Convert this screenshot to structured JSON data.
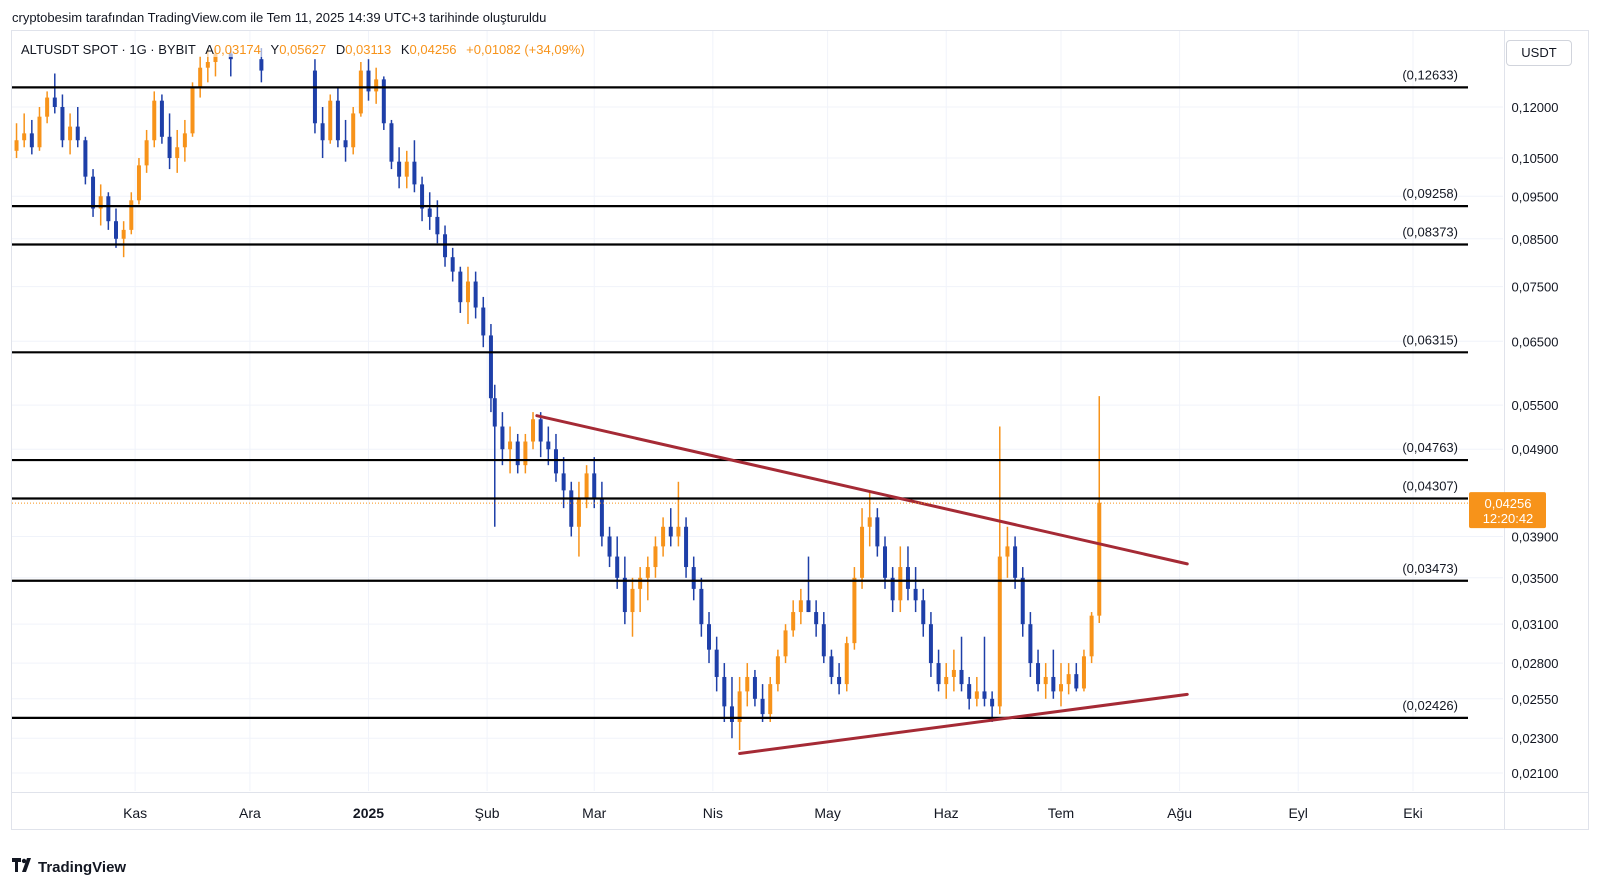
{
  "header": {
    "text": "cryptobesim tarafından TradingView.com ile Tem 11, 2025 14:39 UTC+3 tarihinde oluşturuldu"
  },
  "symbol": {
    "name": "ALTUSDT SPOT · 1G · BYBIT",
    "open_label": "A",
    "open_value": "0,03174",
    "high_label": "Y",
    "high_value": "0,05627",
    "low_label": "D",
    "low_value": "0,03113",
    "close_label": "K",
    "close_value": "0,04256",
    "change": "+0,01082 (+34,09%)"
  },
  "currency": "USDT",
  "footer": {
    "brand": "TradingView",
    "icon": "tradingview-logo-icon"
  },
  "colors": {
    "up": "#f7931a",
    "down": "#1e3fa8",
    "level": "#000000",
    "trend": "#a52a35",
    "grid": "#f0f3fa",
    "last_price_bg": "#f7931a"
  },
  "chart_data": {
    "type": "candlestick",
    "symbol": "ALTUSDT",
    "timeframe": "1G",
    "exchange": "BYBIT",
    "x_labels": [
      "Kas",
      "Ara",
      "2025",
      "Şub",
      "Mar",
      "Nis",
      "May",
      "Haz",
      "Tem",
      "Ağu",
      "Eyl",
      "Eki"
    ],
    "y_ticks": [
      "0,12000",
      "0,10500",
      "0,09500",
      "0,08500",
      "0,07500",
      "0,06500",
      "0,05500",
      "0,04900",
      "0,03900",
      "0,03500",
      "0,03100",
      "0,02800",
      "0,02550",
      "0,02300",
      "0,02100"
    ],
    "y_tick_values": [
      0.12,
      0.105,
      0.095,
      0.085,
      0.075,
      0.065,
      0.055,
      0.049,
      0.039,
      0.035,
      0.031,
      0.028,
      0.0255,
      0.023,
      0.021
    ],
    "y_scale": "log",
    "ylim": [
      0.0202,
      0.14
    ],
    "levels": [
      {
        "label": "(0,12633)",
        "value": 0.12633
      },
      {
        "label": "(0,09258)",
        "value": 0.09258
      },
      {
        "label": "(0,08373)",
        "value": 0.08373
      },
      {
        "label": "(0,06315)",
        "value": 0.06315
      },
      {
        "label": "(0,04763)",
        "value": 0.04763
      },
      {
        "label": "(0,04307)",
        "value": 0.04307
      },
      {
        "label": "(0,03473)",
        "value": 0.03473
      },
      {
        "label": "(0,02426)",
        "value": 0.02426
      }
    ],
    "trendlines": [
      {
        "name": "descending-resistance",
        "from": {
          "date": "2025-02-14",
          "price": 0.0535
        },
        "to": {
          "date": "2025-08-03",
          "price": 0.0363
        }
      },
      {
        "name": "ascending-support",
        "from": {
          "date": "2025-04-08",
          "price": 0.0221
        },
        "to": {
          "date": "2025-08-03",
          "price": 0.0258
        }
      }
    ],
    "last_price": {
      "value": 0.04256,
      "label": "0,04256",
      "countdown": "12:20:42"
    },
    "candles": [
      [
        "2024-10-01",
        0.107,
        0.115,
        0.105,
        0.11
      ],
      [
        "2024-10-03",
        0.11,
        0.118,
        0.108,
        0.112
      ],
      [
        "2024-10-05",
        0.112,
        0.116,
        0.106,
        0.108
      ],
      [
        "2024-10-07",
        0.108,
        0.12,
        0.107,
        0.117
      ],
      [
        "2024-10-09",
        0.117,
        0.125,
        0.115,
        0.123
      ],
      [
        "2024-10-11",
        0.123,
        0.131,
        0.118,
        0.12
      ],
      [
        "2024-10-13",
        0.12,
        0.124,
        0.108,
        0.11
      ],
      [
        "2024-10-15",
        0.11,
        0.118,
        0.106,
        0.114
      ],
      [
        "2024-10-17",
        0.114,
        0.12,
        0.108,
        0.11
      ],
      [
        "2024-10-19",
        0.11,
        0.111,
        0.098,
        0.1
      ],
      [
        "2024-10-21",
        0.1,
        0.102,
        0.09,
        0.092
      ],
      [
        "2024-10-23",
        0.092,
        0.098,
        0.088,
        0.095
      ],
      [
        "2024-10-25",
        0.095,
        0.096,
        0.087,
        0.089
      ],
      [
        "2024-10-27",
        0.089,
        0.092,
        0.083,
        0.085
      ],
      [
        "2024-10-29",
        0.085,
        0.089,
        0.081,
        0.087
      ],
      [
        "2024-10-31",
        0.087,
        0.096,
        0.086,
        0.094
      ],
      [
        "2024-11-02",
        0.094,
        0.105,
        0.093,
        0.103
      ],
      [
        "2024-11-04",
        0.103,
        0.113,
        0.101,
        0.11
      ],
      [
        "2024-11-06",
        0.11,
        0.125,
        0.108,
        0.122
      ],
      [
        "2024-11-08",
        0.122,
        0.124,
        0.109,
        0.111
      ],
      [
        "2024-11-10",
        0.111,
        0.118,
        0.102,
        0.105
      ],
      [
        "2024-11-12",
        0.105,
        0.113,
        0.101,
        0.108
      ],
      [
        "2024-11-14",
        0.108,
        0.116,
        0.104,
        0.112
      ],
      [
        "2024-11-16",
        0.112,
        0.128,
        0.111,
        0.126
      ],
      [
        "2024-11-18",
        0.126,
        0.137,
        0.123,
        0.133
      ],
      [
        "2024-11-20",
        0.133,
        0.14,
        0.128,
        0.135
      ],
      [
        "2024-11-22",
        0.135,
        0.14,
        0.13,
        0.138
      ],
      [
        "2024-11-26",
        0.138,
        0.14,
        0.13,
        0.136
      ],
      [
        "2024-12-04",
        0.136,
        0.14,
        0.128,
        0.132
      ],
      [
        "2024-12-18",
        0.132,
        0.136,
        0.112,
        0.115
      ],
      [
        "2024-12-20",
        0.115,
        0.12,
        0.105,
        0.11
      ],
      [
        "2024-12-22",
        0.11,
        0.124,
        0.109,
        0.122
      ],
      [
        "2024-12-24",
        0.122,
        0.126,
        0.108,
        0.11
      ],
      [
        "2024-12-26",
        0.11,
        0.116,
        0.104,
        0.108
      ],
      [
        "2024-12-28",
        0.108,
        0.12,
        0.106,
        0.118
      ],
      [
        "2024-12-30",
        0.118,
        0.135,
        0.117,
        0.132
      ],
      [
        "2025-01-01",
        0.132,
        0.136,
        0.122,
        0.125
      ],
      [
        "2025-01-03",
        0.125,
        0.133,
        0.121,
        0.129
      ],
      [
        "2025-01-05",
        0.129,
        0.13,
        0.113,
        0.115
      ],
      [
        "2025-01-07",
        0.115,
        0.116,
        0.102,
        0.104
      ],
      [
        "2025-01-09",
        0.104,
        0.108,
        0.097,
        0.1
      ],
      [
        "2025-01-11",
        0.1,
        0.107,
        0.097,
        0.104
      ],
      [
        "2025-01-13",
        0.104,
        0.11,
        0.096,
        0.098
      ],
      [
        "2025-01-15",
        0.098,
        0.1,
        0.089,
        0.092
      ],
      [
        "2025-01-17",
        0.092,
        0.096,
        0.087,
        0.09
      ],
      [
        "2025-01-19",
        0.09,
        0.094,
        0.084,
        0.086
      ],
      [
        "2025-01-21",
        0.086,
        0.088,
        0.079,
        0.081
      ],
      [
        "2025-01-23",
        0.081,
        0.083,
        0.076,
        0.078
      ],
      [
        "2025-01-25",
        0.078,
        0.079,
        0.07,
        0.072
      ],
      [
        "2025-01-27",
        0.072,
        0.079,
        0.068,
        0.076
      ],
      [
        "2025-01-29",
        0.076,
        0.078,
        0.069,
        0.071
      ],
      [
        "2025-01-31",
        0.071,
        0.073,
        0.064,
        0.066
      ],
      [
        "2025-02-02",
        0.066,
        0.068,
        0.054,
        0.056
      ],
      [
        "2025-02-03",
        0.056,
        0.058,
        0.04,
        0.052
      ],
      [
        "2025-02-05",
        0.052,
        0.054,
        0.047,
        0.049
      ],
      [
        "2025-02-07",
        0.049,
        0.052,
        0.046,
        0.05
      ],
      [
        "2025-02-09",
        0.05,
        0.051,
        0.046,
        0.047
      ],
      [
        "2025-02-11",
        0.047,
        0.051,
        0.046,
        0.05
      ],
      [
        "2025-02-13",
        0.05,
        0.054,
        0.049,
        0.053
      ],
      [
        "2025-02-15",
        0.053,
        0.054,
        0.048,
        0.05
      ],
      [
        "2025-02-17",
        0.05,
        0.052,
        0.047,
        0.049
      ],
      [
        "2025-02-19",
        0.049,
        0.051,
        0.045,
        0.046
      ],
      [
        "2025-02-21",
        0.046,
        0.048,
        0.042,
        0.044
      ],
      [
        "2025-02-23",
        0.044,
        0.045,
        0.039,
        0.04
      ],
      [
        "2025-02-25",
        0.04,
        0.045,
        0.037,
        0.043
      ],
      [
        "2025-02-27",
        0.043,
        0.047,
        0.042,
        0.046
      ],
      [
        "2025-03-01",
        0.046,
        0.048,
        0.042,
        0.043
      ],
      [
        "2025-03-03",
        0.043,
        0.045,
        0.038,
        0.039
      ],
      [
        "2025-03-05",
        0.039,
        0.04,
        0.036,
        0.037
      ],
      [
        "2025-03-07",
        0.037,
        0.039,
        0.034,
        0.035
      ],
      [
        "2025-03-09",
        0.035,
        0.037,
        0.031,
        0.032
      ],
      [
        "2025-03-11",
        0.032,
        0.035,
        0.03,
        0.034
      ],
      [
        "2025-03-13",
        0.034,
        0.036,
        0.032,
        0.035
      ],
      [
        "2025-03-15",
        0.035,
        0.037,
        0.033,
        0.036
      ],
      [
        "2025-03-17",
        0.036,
        0.039,
        0.035,
        0.038
      ],
      [
        "2025-03-19",
        0.038,
        0.041,
        0.037,
        0.04
      ],
      [
        "2025-03-21",
        0.04,
        0.042,
        0.038,
        0.039
      ],
      [
        "2025-03-23",
        0.039,
        0.045,
        0.038,
        0.04
      ],
      [
        "2025-03-25",
        0.04,
        0.041,
        0.035,
        0.036
      ],
      [
        "2025-03-27",
        0.036,
        0.037,
        0.033,
        0.034
      ],
      [
        "2025-03-29",
        0.034,
        0.035,
        0.03,
        0.031
      ],
      [
        "2025-03-31",
        0.031,
        0.032,
        0.028,
        0.029
      ],
      [
        "2025-04-02",
        0.029,
        0.03,
        0.026,
        0.027
      ],
      [
        "2025-04-04",
        0.027,
        0.028,
        0.024,
        0.025
      ],
      [
        "2025-04-06",
        0.025,
        0.027,
        0.023,
        0.024
      ],
      [
        "2025-04-08",
        0.024,
        0.027,
        0.0223,
        0.026
      ],
      [
        "2025-04-10",
        0.026,
        0.028,
        0.025,
        0.027
      ],
      [
        "2025-04-12",
        0.027,
        0.0275,
        0.025,
        0.0255
      ],
      [
        "2025-04-14",
        0.0255,
        0.0265,
        0.024,
        0.0245
      ],
      [
        "2025-04-16",
        0.0245,
        0.027,
        0.024,
        0.0265
      ],
      [
        "2025-04-18",
        0.0265,
        0.029,
        0.026,
        0.0285
      ],
      [
        "2025-04-20",
        0.0285,
        0.031,
        0.028,
        0.0305
      ],
      [
        "2025-04-22",
        0.0305,
        0.033,
        0.03,
        0.032
      ],
      [
        "2025-04-24",
        0.032,
        0.034,
        0.031,
        0.033
      ],
      [
        "2025-04-26",
        0.033,
        0.037,
        0.032,
        0.032
      ],
      [
        "2025-04-28",
        0.032,
        0.033,
        0.03,
        0.031
      ],
      [
        "2025-04-30",
        0.031,
        0.032,
        0.028,
        0.0285
      ],
      [
        "2025-05-02",
        0.0285,
        0.029,
        0.0265,
        0.027
      ],
      [
        "2025-05-04",
        0.027,
        0.028,
        0.0258,
        0.0265
      ],
      [
        "2025-05-06",
        0.0265,
        0.03,
        0.026,
        0.0295
      ],
      [
        "2025-05-08",
        0.0295,
        0.036,
        0.029,
        0.035
      ],
      [
        "2025-05-10",
        0.035,
        0.042,
        0.034,
        0.04
      ],
      [
        "2025-05-12",
        0.04,
        0.044,
        0.038,
        0.041
      ],
      [
        "2025-05-14",
        0.041,
        0.042,
        0.037,
        0.038
      ],
      [
        "2025-05-16",
        0.038,
        0.039,
        0.034,
        0.035
      ],
      [
        "2025-05-18",
        0.035,
        0.036,
        0.032,
        0.033
      ],
      [
        "2025-05-20",
        0.033,
        0.038,
        0.032,
        0.036
      ],
      [
        "2025-05-22",
        0.036,
        0.038,
        0.033,
        0.034
      ],
      [
        "2025-05-24",
        0.034,
        0.036,
        0.032,
        0.033
      ],
      [
        "2025-05-26",
        0.033,
        0.034,
        0.03,
        0.031
      ],
      [
        "2025-05-28",
        0.031,
        0.032,
        0.027,
        0.028
      ],
      [
        "2025-05-30",
        0.028,
        0.029,
        0.026,
        0.0265
      ],
      [
        "2025-06-01",
        0.0265,
        0.028,
        0.0255,
        0.027
      ],
      [
        "2025-06-03",
        0.027,
        0.029,
        0.026,
        0.0275
      ],
      [
        "2025-06-05",
        0.0275,
        0.03,
        0.026,
        0.0265
      ],
      [
        "2025-06-07",
        0.0265,
        0.027,
        0.0248,
        0.0255
      ],
      [
        "2025-06-09",
        0.0255,
        0.027,
        0.025,
        0.026
      ],
      [
        "2025-06-11",
        0.026,
        0.03,
        0.025,
        0.0255
      ],
      [
        "2025-06-13",
        0.0255,
        0.026,
        0.024,
        0.025
      ],
      [
        "2025-06-15",
        0.025,
        0.052,
        0.0245,
        0.037
      ],
      [
        "2025-06-17",
        0.037,
        0.04,
        0.035,
        0.038
      ],
      [
        "2025-06-19",
        0.038,
        0.039,
        0.034,
        0.035
      ],
      [
        "2025-06-21",
        0.035,
        0.036,
        0.03,
        0.031
      ],
      [
        "2025-06-23",
        0.031,
        0.032,
        0.027,
        0.028
      ],
      [
        "2025-06-25",
        0.028,
        0.029,
        0.026,
        0.0265
      ],
      [
        "2025-06-27",
        0.0265,
        0.028,
        0.0255,
        0.027
      ],
      [
        "2025-06-29",
        0.027,
        0.029,
        0.0255,
        0.026
      ],
      [
        "2025-07-01",
        0.026,
        0.028,
        0.025,
        0.0265
      ],
      [
        "2025-07-03",
        0.0265,
        0.028,
        0.0258,
        0.0272
      ],
      [
        "2025-07-05",
        0.0272,
        0.028,
        0.026,
        0.0262
      ],
      [
        "2025-07-07",
        0.0262,
        0.029,
        0.026,
        0.0285
      ],
      [
        "2025-07-09",
        0.0285,
        0.032,
        0.028,
        0.0317
      ],
      [
        "2025-07-11",
        0.0317,
        0.0563,
        0.0311,
        0.0426
      ]
    ]
  }
}
